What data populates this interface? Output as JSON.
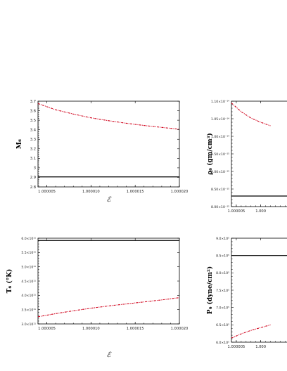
{
  "chart_data": [
    {
      "type": "line",
      "panel": "top-left",
      "ylabel": "M₆",
      "xlabel": "ℰ",
      "ylim": [
        2.8,
        3.7
      ],
      "xlim": [
        1.000004,
        1.00002
      ],
      "yticks": [
        2.8,
        2.9,
        3.0,
        3.1,
        3.2,
        3.3,
        3.4,
        3.5,
        3.6,
        3.7
      ],
      "ytick_labels": [
        "2.8",
        "2.9",
        "3",
        "3.1",
        "3.2",
        "3.3",
        "3.4",
        "3.5",
        "3.6",
        "3.7"
      ],
      "xticks": [
        1.000005,
        1.00001,
        1.000015,
        1.00002
      ],
      "xtick_labels": [
        "1.000005",
        "1.000010",
        "1.000015",
        "1.000020"
      ],
      "series": [
        {
          "style": "solid",
          "color": "#000000",
          "x": [
            1.000004,
            1.00002
          ],
          "y": [
            2.905,
            2.905
          ]
        },
        {
          "style": "dash-dot",
          "color": "#d0021b",
          "x": [
            1.000004,
            1.000006,
            1.000008,
            1.00001,
            1.000012,
            1.000014,
            1.000016,
            1.000018,
            1.00002
          ],
          "y": [
            3.675,
            3.61,
            3.565,
            3.525,
            3.495,
            3.468,
            3.445,
            3.425,
            3.405
          ]
        }
      ]
    },
    {
      "type": "line",
      "panel": "top-right",
      "ylabel": "ρ₆ (gm/cm³)",
      "xlabel": "",
      "ylim": [
        8e-15,
        1.1e-14
      ],
      "xlim": [
        1.000004,
        1.00002
      ],
      "yticks": [
        8e-15,
        8.5e-15,
        9e-15,
        9.5e-15,
        1e-14,
        1.05e-14,
        1.1e-14
      ],
      "ytick_labels": [
        "8.00×10⁻¹⁵",
        "8.50×10⁻¹⁵",
        "9.00×10⁻¹⁵",
        "9.50×10⁻¹⁵",
        "1.00×10⁻¹⁴",
        "1.05×10⁻¹⁴",
        "1.10×10⁻¹⁴"
      ],
      "xticks": [
        1.000005,
        1.00001
      ],
      "xtick_labels": [
        "1.000005",
        "1.000"
      ],
      "series": [
        {
          "style": "solid",
          "color": "#000000",
          "x": [
            1.000004,
            1.00002
          ],
          "y": [
            8.3e-15,
            8.3e-15
          ]
        },
        {
          "style": "dash-dot",
          "color": "#d0021b",
          "x": [
            1.000004,
            1.000006,
            1.000008,
            1.00001,
            1.000012
          ],
          "y": [
            1.095e-14,
            1.07e-14,
            1.052e-14,
            1.04e-14,
            1.03e-14
          ]
        }
      ]
    },
    {
      "type": "line",
      "panel": "bottom-left",
      "ylabel": "T₆ (°K)",
      "xlabel": "ℰ",
      "ylim": [
        300000000000.0,
        600000000000.0
      ],
      "xlim": [
        1.000004,
        1.00002
      ],
      "yticks": [
        300000000000.0,
        350000000000.0,
        400000000000.0,
        450000000000.0,
        500000000000.0,
        550000000000.0,
        600000000000.0
      ],
      "ytick_labels": [
        "3.0×10¹¹",
        "3.5×10¹¹",
        "4.0×10¹¹",
        "4.5×10¹¹",
        "5.0×10¹¹",
        "5.5×10¹¹",
        "6.0×10¹¹"
      ],
      "xticks": [
        1.000005,
        1.00001,
        1.000015,
        1.00002
      ],
      "xtick_labels": [
        "1.000005",
        "1.000010",
        "1.000015",
        "1.000020"
      ],
      "series": [
        {
          "style": "solid",
          "color": "#000000",
          "x": [
            1.000004,
            1.00002
          ],
          "y": [
            592000000000.0,
            592000000000.0
          ]
        },
        {
          "style": "dash-dot",
          "color": "#d0021b",
          "x": [
            1.000004,
            1.000006,
            1.000008,
            1.00001,
            1.000012,
            1.000014,
            1.000016,
            1.000018,
            1.00002
          ],
          "y": [
            325000000000.0,
            336000000000.0,
            346000000000.0,
            355000000000.0,
            363000000000.0,
            370000000000.0,
            377000000000.0,
            384000000000.0,
            392000000000.0
          ]
        }
      ]
    },
    {
      "type": "line",
      "panel": "bottom-right",
      "ylabel": "P₆ (dyne/cm²)",
      "xlabel": "",
      "ylim": [
        600000.0,
        900000.0
      ],
      "xlim": [
        1.000004,
        1.00002
      ],
      "yticks": [
        600000.0,
        650000.0,
        700000.0,
        750000.0,
        800000.0,
        850000.0,
        900000.0
      ],
      "ytick_labels": [
        "6.0×10⁵",
        "6.5×10⁵",
        "7.0×10⁵",
        "7.5×10⁵",
        "8.0×10⁵",
        "8.5×10⁵",
        "9.0×10⁵"
      ],
      "xticks": [
        1.000005,
        1.00001
      ],
      "xtick_labels": [
        "1.000005",
        "1.000"
      ],
      "series": [
        {
          "style": "solid",
          "color": "#000000",
          "x": [
            1.000004,
            1.00002
          ],
          "y": [
            850000.0,
            850000.0
          ]
        },
        {
          "style": "dash-dot",
          "color": "#d0021b",
          "x": [
            1.000004,
            1.000006,
            1.000008,
            1.00001,
            1.000012
          ],
          "y": [
            612000.0,
            624000.0,
            634000.0,
            642000.0,
            650000.0
          ]
        }
      ]
    }
  ]
}
